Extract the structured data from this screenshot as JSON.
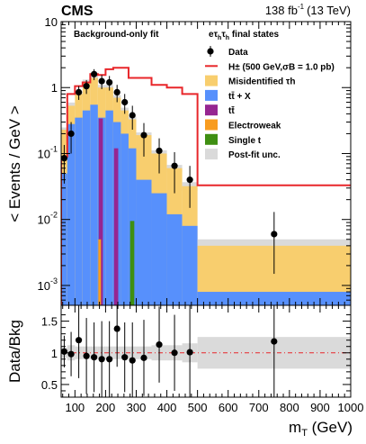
{
  "header": {
    "experiment": "CMS",
    "luminosity": "138 fb",
    "lumi_exponent": "-1",
    "energy": "(13 TeV)"
  },
  "chart_data": [
    {
      "panel": "main",
      "type": "histogram",
      "ylabel": "< Events / GeV >",
      "yscale": "log",
      "ylim": [
        0.0005,
        10
      ],
      "xlim": [
        55,
        1000
      ],
      "fit_label": "Background-only fit",
      "channel_label": "eτhτh final states",
      "bin_edges": [
        55,
        75,
        100,
        125,
        150,
        175,
        200,
        225,
        250,
        275,
        300,
        350,
        400,
        450,
        500,
        1000
      ],
      "x_ticks": [
        100,
        200,
        300,
        400,
        500,
        600,
        700,
        800,
        900,
        1000
      ],
      "y_ticks": [
        {
          "value": 0.001,
          "label": "10",
          "exp": "-3"
        },
        {
          "value": 0.01,
          "label": "10",
          "exp": "-2"
        },
        {
          "value": 0.1,
          "label": "10",
          "exp": "-1"
        },
        {
          "value": 1,
          "label": "1",
          "exp": ""
        },
        {
          "value": 10,
          "label": "10",
          "exp": ""
        }
      ],
      "legend_placement": "top-right",
      "legend": [
        {
          "label": "Data",
          "kind": "marker"
        },
        {
          "label": "H± (500 GeV,σB = 1.0 pb)",
          "kind": "line"
        },
        {
          "label": "Misidentified τh",
          "kind": "box"
        },
        {
          "label": "tt̄ + X",
          "kind": "box"
        },
        {
          "label": "tt̄",
          "kind": "box"
        },
        {
          "label": "Electroweak",
          "kind": "box"
        },
        {
          "label": "Single t",
          "kind": "box"
        },
        {
          "label": "Post-fit unc.",
          "kind": "box"
        }
      ],
      "colors": {
        "misid": "#f8ce6e",
        "ttx": "#5790fc",
        "tt": "#962691",
        "ewk": "#f89c20",
        "singlet": "#3f8f12",
        "unc": "#dadada",
        "signal": "#e8262a"
      },
      "series": [
        {
          "name": "tt̄ + X",
          "key": "ttx",
          "values": [
            0.05,
            0.28,
            0.35,
            0.45,
            0.55,
            0.35,
            0.45,
            0.3,
            0.2,
            0.12,
            0.04,
            0.025,
            0.012,
            0.008,
            0.0008
          ]
        },
        {
          "name": "Misidentified τh",
          "key": "misid",
          "values": [
            0.18,
            0.25,
            0.45,
            0.75,
            0.85,
            0.65,
            0.55,
            0.4,
            0.25,
            0.21,
            0.15,
            0.075,
            0.048,
            0.024,
            0.0032
          ]
        },
        {
          "name": "tt̄",
          "key": "tt",
          "values": [
            0,
            0,
            0,
            0,
            0,
            0.34,
            0,
            0.12,
            0,
            0,
            0,
            0,
            0,
            0,
            0
          ]
        },
        {
          "name": "Electroweak",
          "key": "ewk",
          "values": [
            0,
            0,
            0,
            0,
            0,
            0.005,
            0,
            0,
            0,
            0,
            0,
            0,
            0,
            0,
            0
          ]
        },
        {
          "name": "Single t",
          "key": "singlet",
          "values": [
            0,
            0,
            0,
            0,
            0,
            0,
            0,
            0,
            0,
            0.0095,
            0,
            0,
            0,
            0,
            0
          ]
        }
      ],
      "uncertainty": {
        "name": "Post-fit unc.",
        "rel_up": [
          0.08,
          0.12,
          0.1,
          0.1,
          0.1,
          0.1,
          0.1,
          0.1,
          0.1,
          0.1,
          0.1,
          0.12,
          0.12,
          0.15,
          0.25
        ],
        "rel_down": [
          0.08,
          0.12,
          0.1,
          0.1,
          0.1,
          0.1,
          0.1,
          0.1,
          0.1,
          0.1,
          0.1,
          0.12,
          0.12,
          0.15,
          0.25
        ]
      },
      "signal": {
        "name": "H± (500 GeV,σB = 1.0 pb)",
        "values": [
          0.09,
          0.8,
          1.05,
          1.2,
          1.6,
          1.55,
          1.9,
          2.0,
          2.0,
          1.4,
          1.4,
          1.1,
          1.0,
          0.8,
          0.033
        ]
      },
      "data_points": {
        "name": "Data",
        "x": [
          65,
          87.5,
          112.5,
          137.5,
          162.5,
          187.5,
          212.5,
          237.5,
          262.5,
          287.5,
          325,
          375,
          425,
          475,
          750
        ],
        "y": [
          0.085,
          0.2,
          0.85,
          1.05,
          1.6,
          1.25,
          1.2,
          0.85,
          0.6,
          0.38,
          0.19,
          0.11,
          0.065,
          0.04,
          0.006
        ],
        "err_lo": [
          0.05,
          0.1,
          0.2,
          0.25,
          0.3,
          0.3,
          0.3,
          0.25,
          0.2,
          0.15,
          0.1,
          0.06,
          0.04,
          0.025,
          0.0045
        ],
        "err_hi": [
          0.05,
          0.1,
          0.2,
          0.25,
          0.3,
          0.3,
          0.3,
          0.25,
          0.2,
          0.15,
          0.1,
          0.06,
          0.04,
          0.025,
          0.007
        ]
      }
    },
    {
      "panel": "ratio",
      "type": "scatter",
      "ylabel": "Data/Bkg",
      "xlabel": "mT (GeV)",
      "ylim": [
        0.3,
        1.75
      ],
      "y_ticks": [
        0.5,
        1,
        1.5
      ],
      "reference_line": 1,
      "x": [
        65,
        87.5,
        112.5,
        137.5,
        162.5,
        187.5,
        212.5,
        237.5,
        262.5,
        287.5,
        325,
        375,
        425,
        475,
        750
      ],
      "y": [
        1.02,
        0.98,
        1.2,
        0.95,
        0.93,
        0.9,
        0.9,
        1.38,
        0.93,
        0.88,
        0.92,
        1.13,
        1.0,
        1.01,
        1.18
      ],
      "err_lo": [
        0.25,
        0.35,
        0.6,
        0.6,
        0.55,
        0.6,
        0.6,
        0.6,
        0.55,
        0.6,
        0.6,
        0.6,
        0.6,
        0.75,
        0.9
      ],
      "err_hi": [
        0.25,
        0.35,
        0.6,
        0.6,
        0.55,
        0.6,
        0.6,
        0.6,
        0.55,
        0.6,
        0.6,
        0.6,
        0.6,
        0.75,
        0.9
      ],
      "band_rel_unc": [
        0.08,
        0.12,
        0.1,
        0.1,
        0.1,
        0.1,
        0.1,
        0.1,
        0.1,
        0.1,
        0.1,
        0.12,
        0.12,
        0.15,
        0.25
      ]
    }
  ]
}
